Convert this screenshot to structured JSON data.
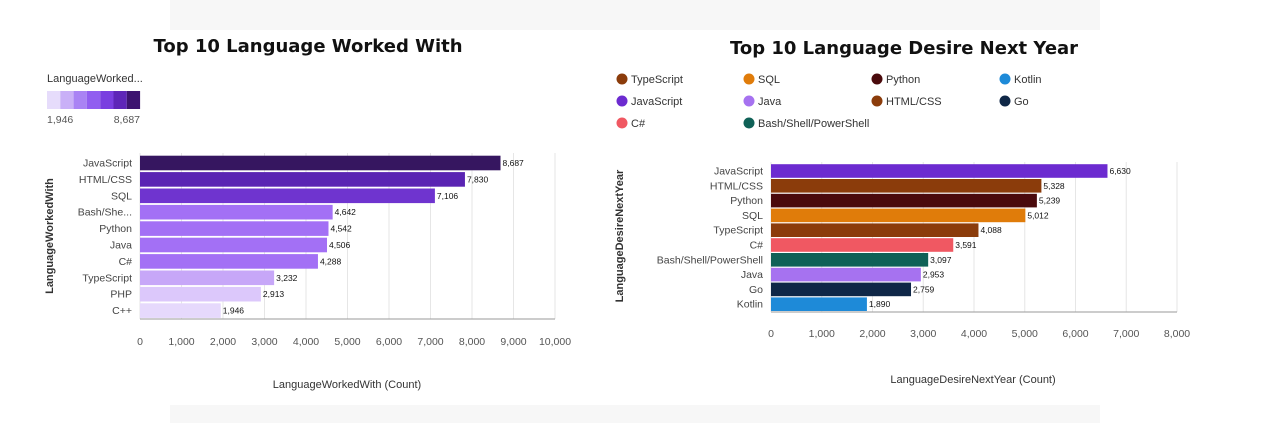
{
  "chart_data": [
    {
      "type": "bar",
      "orientation": "horizontal",
      "title": "Top 10 Language Worked With",
      "ylabel": "LanguageWorkedWith",
      "xlabel": "LanguageWorkedWith (Count)",
      "categories": [
        "JavaScript",
        "HTML/CSS",
        "SQL",
        "Bash/She...",
        "Python",
        "Java",
        "C#",
        "TypeScript",
        "PHP",
        "C++"
      ],
      "values": [
        8687,
        7830,
        7106,
        4642,
        4542,
        4506,
        4288,
        3232,
        2913,
        1946
      ],
      "data_labels": [
        "8,687",
        "7,830",
        "7,106",
        "4,642",
        "4,542",
        "4,506",
        "4,288",
        "3,232",
        "2,913",
        "1,946"
      ],
      "xlim": [
        0,
        10000
      ],
      "xticks": [
        "0",
        "1,000",
        "2,000",
        "3,000",
        "4,000",
        "5,000",
        "6,000",
        "7,000",
        "8,000",
        "9,000",
        "10,000"
      ],
      "grid": true,
      "color_scale": {
        "title": "LanguageWorked...",
        "min_label": "1,946",
        "max_label": "8,687",
        "colors": [
          "#e6dcfb",
          "#c9b0f7",
          "#a983f4",
          "#915ef0",
          "#7a3fe0",
          "#5e26b8",
          "#3d1470"
        ]
      },
      "bar_colors": [
        "#361660",
        "#5a24b3",
        "#6f34cf",
        "#a370f5",
        "#a370f5",
        "#a370f5",
        "#a370f5",
        "#c7a7f8",
        "#dcc8fb",
        "#e6d9fc"
      ]
    },
    {
      "type": "bar",
      "orientation": "horizontal",
      "title": "Top 10 Language Desire Next Year",
      "ylabel": "LanguageDesireNextYear",
      "xlabel": "LanguageDesireNextYear (Count)",
      "categories": [
        "JavaScript",
        "HTML/CSS",
        "Python",
        "SQL",
        "TypeScript",
        "C#",
        "Bash/Shell/PowerShell",
        "Java",
        "Go",
        "Kotlin"
      ],
      "values": [
        6630,
        5328,
        5239,
        5012,
        4088,
        3591,
        3097,
        2953,
        2759,
        1890
      ],
      "data_labels": [
        "6,630",
        "5,328",
        "5,239",
        "5,012",
        "4,088",
        "3,591",
        "3,097",
        "2,953",
        "2,759",
        "1,890"
      ],
      "xlim": [
        0,
        8000
      ],
      "xticks": [
        "0",
        "1,000",
        "2,000",
        "3,000",
        "4,000",
        "5,000",
        "6,000",
        "7,000",
        "8,000"
      ],
      "grid": true,
      "legend_position": "top",
      "legend": [
        {
          "name": "TypeScript",
          "color": "#8b3c0b"
        },
        {
          "name": "SQL",
          "color": "#e07c0a"
        },
        {
          "name": "Python",
          "color": "#4a0a0c"
        },
        {
          "name": "Kotlin",
          "color": "#1e8ad8"
        },
        {
          "name": "JavaScript",
          "color": "#6c2bd0"
        },
        {
          "name": "Java",
          "color": "#a672f0"
        },
        {
          "name": "HTML/CSS",
          "color": "#8b3c0b"
        },
        {
          "name": "Go",
          "color": "#0f2747"
        },
        {
          "name": "C#",
          "color": "#f05862"
        },
        {
          "name": "Bash/Shell/PowerShell",
          "color": "#0f6157"
        }
      ],
      "bar_colors": [
        "#6c2bd0",
        "#8b3c0b",
        "#4a0a0c",
        "#e07c0a",
        "#8b3c0b",
        "#f05862",
        "#0f6157",
        "#a672f0",
        "#0f2747",
        "#1e8ad8"
      ]
    }
  ]
}
